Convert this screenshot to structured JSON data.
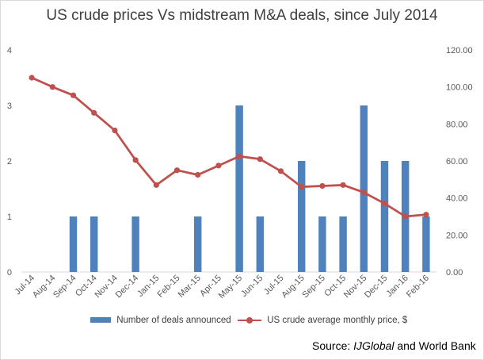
{
  "chart_data": {
    "type": "bar+line",
    "title": "US crude prices Vs midstream M&A deals, since July 2014",
    "categories": [
      "Jul-14",
      "Aug-14",
      "Sep-14",
      "Oct-14",
      "Nov-14",
      "Dec-14",
      "Jan-15",
      "Feb-15",
      "Mar-15",
      "Apr-15",
      "May-15",
      "Jun-15",
      "Jul-15",
      "Aug-15",
      "Sep-15",
      "Oct-15",
      "Nov-15",
      "Dec-15",
      "Jan-16",
      "Feb-16"
    ],
    "series": [
      {
        "name": "Number of deals announced",
        "type": "bar",
        "axis": "left",
        "color": "#4f81bd",
        "values": [
          0,
          0,
          1,
          1,
          0,
          1,
          0,
          0,
          1,
          0,
          3,
          1,
          0,
          2,
          1,
          1,
          3,
          2,
          2,
          1
        ]
      },
      {
        "name": "US crude average monthly price, $",
        "type": "line",
        "axis": "right",
        "color": "#c0504d",
        "values": [
          105,
          100,
          95.5,
          86,
          76.5,
          60.5,
          47,
          55,
          52.5,
          57.5,
          62.5,
          61,
          54.5,
          46,
          46.5,
          47,
          43,
          37,
          30,
          31
        ]
      }
    ],
    "y_left": {
      "ticks": [
        "0",
        "1",
        "2",
        "3",
        "4"
      ],
      "ylim": [
        0,
        4
      ]
    },
    "y_right": {
      "ticks": [
        "0.00",
        "20.00",
        "40.00",
        "60.00",
        "80.00",
        "100.00",
        "120.00"
      ],
      "ylim": [
        0,
        120
      ]
    },
    "grid": false,
    "legend_position": "bottom"
  },
  "source": {
    "prefix": "Source: ",
    "italic": "IJGlobal",
    "suffix": " and World Bank"
  }
}
